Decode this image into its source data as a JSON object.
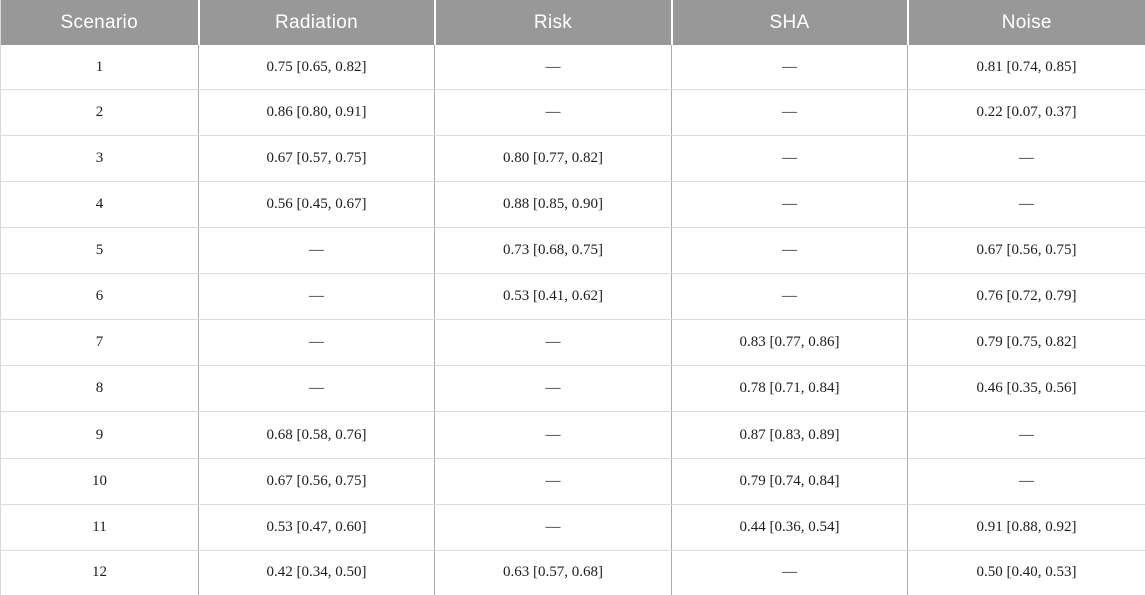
{
  "table": {
    "columns": [
      "Scenario",
      "Radiation",
      "Risk",
      "SHA",
      "Noise"
    ],
    "rows": [
      [
        "1",
        "0.75 [0.65, 0.82]",
        "—",
        "—",
        "0.81 [0.74, 0.85]"
      ],
      [
        "2",
        "0.86 [0.80, 0.91]",
        "—",
        "—",
        "0.22 [0.07, 0.37]"
      ],
      [
        "3",
        "0.67 [0.57, 0.75]",
        "0.80 [0.77, 0.82]",
        "—",
        "—"
      ],
      [
        "4",
        "0.56 [0.45, 0.67]",
        "0.88 [0.85, 0.90]",
        "—",
        "—"
      ],
      [
        "5",
        "—",
        "0.73 [0.68, 0.75]",
        "—",
        "0.67 [0.56, 0.75]"
      ],
      [
        "6",
        "—",
        "0.53 [0.41, 0.62]",
        "—",
        "0.76 [0.72, 0.79]"
      ],
      [
        "7",
        "—",
        "—",
        "0.83 [0.77, 0.86]",
        "0.79 [0.75, 0.82]"
      ],
      [
        "8",
        "—",
        "—",
        "0.78 [0.71, 0.84]",
        "0.46 [0.35, 0.56]"
      ],
      [
        "9",
        "0.68 [0.58, 0.76]",
        "—",
        "0.87 [0.83, 0.89]",
        "—"
      ],
      [
        "10",
        "0.67 [0.56, 0.75]",
        "—",
        "0.79 [0.74, 0.84]",
        "—"
      ],
      [
        "11",
        "0.53 [0.47, 0.60]",
        "—",
        "0.44 [0.36, 0.54]",
        "0.91 [0.88, 0.92]"
      ],
      [
        "12",
        "0.42 [0.34, 0.50]",
        "0.63 [0.57, 0.68]",
        "—",
        "0.50 [0.40, 0.53]"
      ]
    ]
  },
  "colors": {
    "header_background": "#989898",
    "header_text": "#ffffff",
    "row_divider": "#dcdcdc",
    "column_divider": "#ababab",
    "body_text": "#1c1c1c"
  }
}
